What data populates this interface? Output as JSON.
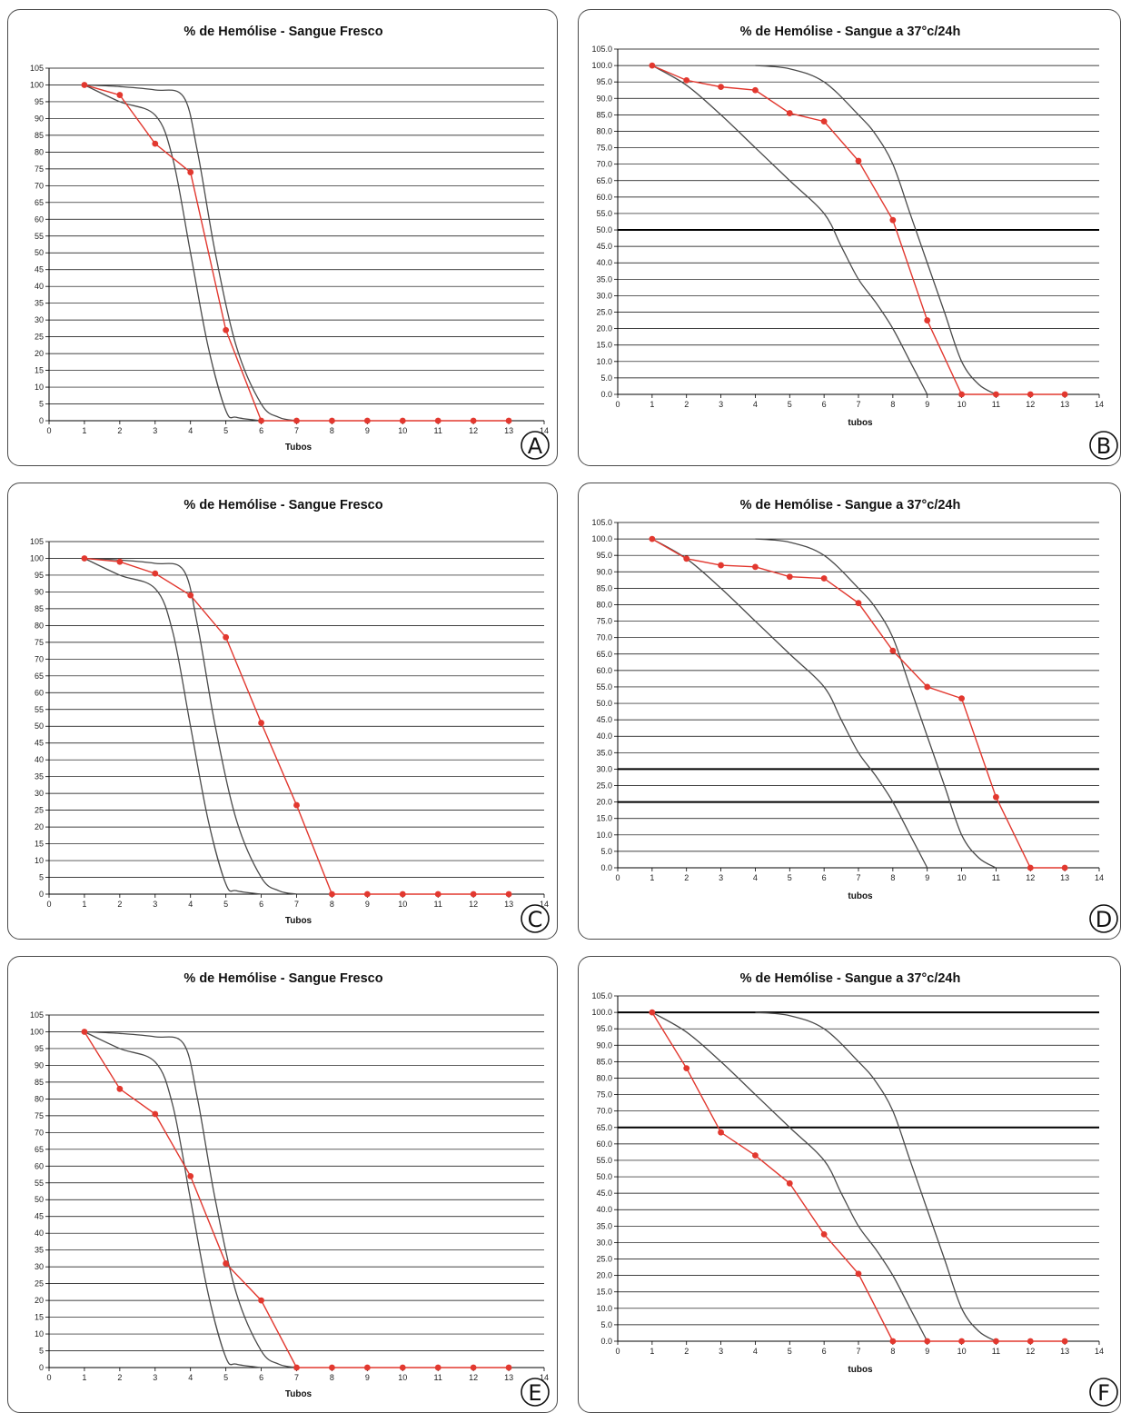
{
  "colors": {
    "series": "#e2382f",
    "reference": "#4a4a4a",
    "grid": "#000000"
  },
  "chart_data": [
    {
      "panel": "A",
      "type": "line",
      "title": "% de Hemólise - Sangue Fresco",
      "xlabel": "Tubos",
      "ylabel": "",
      "xlim": [
        0,
        14
      ],
      "ylim": [
        0,
        105
      ],
      "ystep": 5,
      "ydecimals": 0,
      "grid": "horizontal",
      "heavy_grid": [],
      "x": [
        1,
        2,
        3,
        4,
        5,
        6,
        7,
        8,
        9,
        10,
        11,
        12,
        13
      ],
      "series": [
        {
          "values": [
            100,
            97,
            82.5,
            74,
            27,
            0,
            0,
            0,
            0,
            0,
            0,
            0,
            0
          ]
        }
      ],
      "reference_curves": [
        [
          [
            1,
            100
          ],
          [
            2,
            95
          ],
          [
            3,
            91
          ],
          [
            3.5,
            78
          ],
          [
            4,
            50
          ],
          [
            4.5,
            22
          ],
          [
            5,
            3
          ],
          [
            5.3,
            1
          ],
          [
            6,
            0
          ]
        ],
        [
          [
            1,
            100
          ],
          [
            2,
            99.5
          ],
          [
            3,
            98.5
          ],
          [
            3.8,
            96.5
          ],
          [
            4.2,
            80
          ],
          [
            4.7,
            50
          ],
          [
            5.3,
            22
          ],
          [
            6,
            5
          ],
          [
            6.5,
            1
          ],
          [
            7,
            0
          ]
        ]
      ]
    },
    {
      "panel": "B",
      "type": "line",
      "title": "% de Hemólise - Sangue a 37°c/24h",
      "xlabel": "tubos",
      "ylabel": "",
      "xlim": [
        0,
        14
      ],
      "ylim": [
        0,
        105
      ],
      "ystep": 5,
      "ydecimals": 1,
      "grid": "horizontal",
      "heavy_grid": [
        50
      ],
      "x": [
        1,
        2,
        3,
        4,
        5,
        6,
        7,
        8,
        9,
        10,
        11,
        12,
        13
      ],
      "series": [
        {
          "values": [
            100,
            95.5,
            93.5,
            92.5,
            85.5,
            83,
            71,
            53,
            22.5,
            0,
            0,
            0,
            0
          ]
        }
      ],
      "reference_curves": [
        [
          [
            1,
            100
          ],
          [
            2,
            94
          ],
          [
            3,
            85
          ],
          [
            4,
            75
          ],
          [
            5,
            65
          ],
          [
            6,
            55
          ],
          [
            6.5,
            45
          ],
          [
            7,
            35
          ],
          [
            7.5,
            28
          ],
          [
            8,
            20
          ],
          [
            8.5,
            10
          ],
          [
            9,
            0
          ]
        ],
        [
          [
            4,
            100
          ],
          [
            5,
            99
          ],
          [
            6,
            95
          ],
          [
            7,
            85
          ],
          [
            7.5,
            79
          ],
          [
            8,
            70
          ],
          [
            8.5,
            55
          ],
          [
            9,
            40
          ],
          [
            9.5,
            25
          ],
          [
            10,
            10
          ],
          [
            10.5,
            3
          ],
          [
            11,
            0
          ]
        ]
      ]
    },
    {
      "panel": "C",
      "type": "line",
      "title": "% de Hemólise - Sangue Fresco",
      "xlabel": "Tubos",
      "ylabel": "",
      "xlim": [
        0,
        14
      ],
      "ylim": [
        0,
        105
      ],
      "ystep": 5,
      "ydecimals": 0,
      "grid": "horizontal",
      "heavy_grid": [],
      "x": [
        1,
        2,
        3,
        4,
        5,
        6,
        7,
        8,
        9,
        10,
        11,
        12,
        13
      ],
      "series": [
        {
          "values": [
            100,
            99,
            95.5,
            89,
            76.5,
            51,
            26.5,
            0,
            0,
            0,
            0,
            0,
            0
          ]
        }
      ],
      "reference_curves": [
        [
          [
            1,
            100
          ],
          [
            2,
            95
          ],
          [
            3,
            91
          ],
          [
            3.5,
            78
          ],
          [
            4,
            50
          ],
          [
            4.5,
            22
          ],
          [
            5,
            3
          ],
          [
            5.3,
            1
          ],
          [
            6,
            0
          ]
        ],
        [
          [
            1,
            100
          ],
          [
            2,
            99.5
          ],
          [
            3,
            98.5
          ],
          [
            3.8,
            96.5
          ],
          [
            4.2,
            80
          ],
          [
            4.7,
            50
          ],
          [
            5.3,
            22
          ],
          [
            6,
            5
          ],
          [
            6.5,
            1
          ],
          [
            7,
            0
          ]
        ]
      ]
    },
    {
      "panel": "D",
      "type": "line",
      "title": "% de Hemólise - Sangue a 37°c/24h",
      "xlabel": "tubos",
      "ylabel": "",
      "xlim": [
        0,
        14
      ],
      "ylim": [
        0,
        105
      ],
      "ystep": 5,
      "ydecimals": 1,
      "grid": "horizontal",
      "heavy_grid": [
        20,
        30
      ],
      "x": [
        1,
        2,
        3,
        4,
        5,
        6,
        7,
        8,
        9,
        10,
        11,
        12,
        13
      ],
      "series": [
        {
          "values": [
            100,
            94,
            92,
            91.5,
            88.5,
            88,
            80.5,
            66,
            55,
            51.5,
            21.5,
            0,
            0
          ]
        }
      ],
      "reference_curves": [
        [
          [
            1,
            100
          ],
          [
            2,
            94
          ],
          [
            3,
            85
          ],
          [
            4,
            75
          ],
          [
            5,
            65
          ],
          [
            6,
            55
          ],
          [
            6.5,
            45
          ],
          [
            7,
            35
          ],
          [
            7.5,
            28
          ],
          [
            8,
            20
          ],
          [
            8.5,
            10
          ],
          [
            9,
            0
          ]
        ],
        [
          [
            4,
            100
          ],
          [
            5,
            99
          ],
          [
            6,
            95
          ],
          [
            7,
            85
          ],
          [
            7.5,
            79
          ],
          [
            8,
            70
          ],
          [
            8.5,
            55
          ],
          [
            9,
            40
          ],
          [
            9.5,
            25
          ],
          [
            10,
            10
          ],
          [
            10.5,
            3
          ],
          [
            11,
            0
          ]
        ]
      ]
    },
    {
      "panel": "E",
      "type": "line",
      "title": "% de Hemólise - Sangue Fresco",
      "xlabel": "Tubos",
      "ylabel": "",
      "xlim": [
        0,
        14
      ],
      "ylim": [
        0,
        105
      ],
      "ystep": 5,
      "ydecimals": 0,
      "grid": "horizontal",
      "heavy_grid": [],
      "x": [
        1,
        2,
        3,
        4,
        5,
        6,
        7,
        8,
        9,
        10,
        11,
        12,
        13
      ],
      "series": [
        {
          "values": [
            100,
            83,
            75.5,
            57,
            31,
            20,
            0,
            0,
            0,
            0,
            0,
            0,
            0
          ]
        }
      ],
      "reference_curves": [
        [
          [
            1,
            100
          ],
          [
            2,
            95
          ],
          [
            3,
            91
          ],
          [
            3.5,
            78
          ],
          [
            4,
            50
          ],
          [
            4.5,
            22
          ],
          [
            5,
            3
          ],
          [
            5.3,
            1
          ],
          [
            6,
            0
          ]
        ],
        [
          [
            1,
            100
          ],
          [
            2,
            99.5
          ],
          [
            3,
            98.5
          ],
          [
            3.8,
            96.5
          ],
          [
            4.2,
            80
          ],
          [
            4.7,
            50
          ],
          [
            5.3,
            22
          ],
          [
            6,
            5
          ],
          [
            6.5,
            1
          ],
          [
            7,
            0
          ]
        ]
      ]
    },
    {
      "panel": "F",
      "type": "line",
      "title": "% de Hemólise - Sangue a 37°c/24h",
      "xlabel": "tubos",
      "ylabel": "",
      "xlim": [
        0,
        14
      ],
      "ylim": [
        0,
        105
      ],
      "ystep": 5,
      "ydecimals": 1,
      "grid": "horizontal",
      "heavy_grid": [
        100,
        65
      ],
      "x": [
        1,
        2,
        3,
        4,
        5,
        6,
        7,
        8,
        9,
        10,
        11,
        12,
        13
      ],
      "series": [
        {
          "values": [
            100,
            83,
            63.5,
            56.5,
            48,
            32.5,
            20.5,
            0,
            0,
            0,
            0,
            0,
            0
          ]
        }
      ],
      "reference_curves": [
        [
          [
            1,
            100
          ],
          [
            2,
            94
          ],
          [
            3,
            85
          ],
          [
            4,
            75
          ],
          [
            5,
            65
          ],
          [
            6,
            55
          ],
          [
            6.5,
            45
          ],
          [
            7,
            35
          ],
          [
            7.5,
            28
          ],
          [
            8,
            20
          ],
          [
            8.5,
            10
          ],
          [
            9,
            0
          ]
        ],
        [
          [
            4,
            100
          ],
          [
            5,
            99
          ],
          [
            6,
            95
          ],
          [
            7,
            85
          ],
          [
            7.5,
            79
          ],
          [
            8,
            70
          ],
          [
            8.5,
            55
          ],
          [
            9,
            40
          ],
          [
            9.5,
            25
          ],
          [
            10,
            10
          ],
          [
            10.5,
            3
          ],
          [
            11,
            0
          ]
        ]
      ]
    }
  ]
}
